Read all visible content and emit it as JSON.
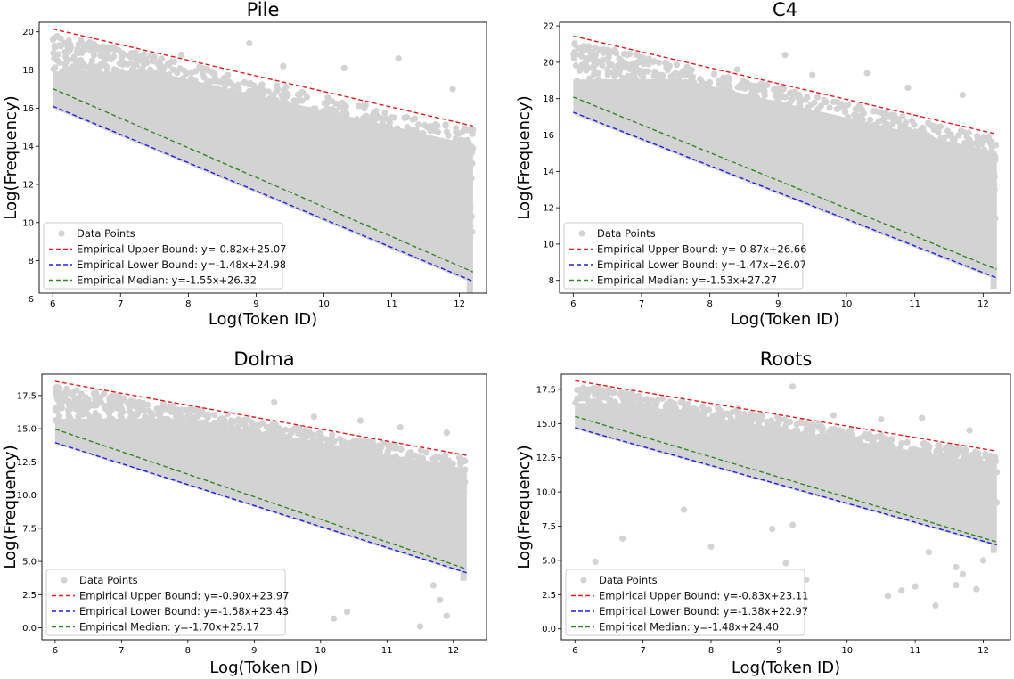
{
  "chart_data": [
    {
      "type": "scatter",
      "title": "Pile",
      "xlabel": "Log(Token ID)",
      "ylabel": "Log(Frequency)",
      "xlim": [
        5.8,
        12.4
      ],
      "ylim": [
        6.3,
        20.5
      ],
      "xticks": [
        6,
        7,
        8,
        9,
        10,
        11,
        12
      ],
      "xtick_labels": [
        "6",
        "7",
        "8",
        "9",
        "10",
        "11",
        "12"
      ],
      "yticks": [
        6,
        8,
        10,
        12,
        14,
        16,
        18,
        20
      ],
      "ytick_labels": [
        "6",
        "8",
        "10",
        "12",
        "14",
        "16",
        "18",
        "20"
      ],
      "x_range": [
        6.0,
        12.2
      ],
      "lines": [
        {
          "name": "Empirical Upper Bound: y=-0.82x+25.07",
          "slope": -0.82,
          "intercept": 25.07,
          "color": "#e41a1c"
        },
        {
          "name": "Empirical Lower Bound: y=-1.48x+24.98",
          "slope": -1.48,
          "intercept": 24.98,
          "color": "#1f1fe0"
        },
        {
          "name": "Empirical Median: y=-1.55x+26.32",
          "slope": -1.55,
          "intercept": 26.32,
          "color": "#2a8a1e"
        }
      ],
      "scatter_name": "Data Points",
      "scatter_color": "#d3d3d3",
      "outliers": [
        [
          6.2,
          18.4
        ],
        [
          6.6,
          18.9
        ],
        [
          6.9,
          18.7
        ],
        [
          7.3,
          18.5
        ],
        [
          7.9,
          18.8
        ],
        [
          8.9,
          19.4
        ],
        [
          9.4,
          18.2
        ],
        [
          10.3,
          18.1
        ],
        [
          11.1,
          18.6
        ],
        [
          11.9,
          17.0
        ],
        [
          6.4,
          18.2
        ],
        [
          7.1,
          18.3
        ]
      ],
      "legend_loc": "lower left"
    },
    {
      "type": "scatter",
      "title": "C4",
      "xlabel": "Log(Token ID)",
      "ylabel": "Log(Frequency)",
      "xlim": [
        5.8,
        12.4
      ],
      "ylim": [
        7.3,
        22.2
      ],
      "xticks": [
        6,
        7,
        8,
        9,
        10,
        11,
        12
      ],
      "xtick_labels": [
        "6",
        "7",
        "8",
        "9",
        "10",
        "11",
        "12"
      ],
      "yticks": [
        8,
        10,
        12,
        14,
        16,
        18,
        20,
        22
      ],
      "ytick_labels": [
        "8",
        "10",
        "12",
        "14",
        "16",
        "18",
        "20",
        "22"
      ],
      "x_range": [
        6.0,
        12.2
      ],
      "lines": [
        {
          "name": "Empirical Upper Bound: y=-0.87x+26.66",
          "slope": -0.87,
          "intercept": 26.66,
          "color": "#e41a1c"
        },
        {
          "name": "Empirical Lower Bound: y=-1.47x+26.07",
          "slope": -1.47,
          "intercept": 26.07,
          "color": "#1f1fe0"
        },
        {
          "name": "Empirical Median: y=-1.53x+27.27",
          "slope": -1.53,
          "intercept": 27.27,
          "color": "#2a8a1e"
        }
      ],
      "scatter_name": "Data Points",
      "scatter_color": "#d3d3d3",
      "outliers": [
        [
          6.3,
          19.8
        ],
        [
          6.7,
          20.1
        ],
        [
          7.1,
          19.9
        ],
        [
          7.6,
          19.5
        ],
        [
          8.4,
          19.6
        ],
        [
          9.1,
          20.4
        ],
        [
          9.5,
          19.3
        ],
        [
          10.3,
          19.4
        ],
        [
          10.9,
          18.6
        ],
        [
          11.7,
          18.2
        ],
        [
          6.5,
          19.6
        ],
        [
          7.3,
          19.2
        ]
      ],
      "legend_loc": "lower left"
    },
    {
      "type": "scatter",
      "title": "Dolma",
      "xlabel": "Log(Token ID)",
      "ylabel": "Log(Frequency)",
      "xlim": [
        5.8,
        12.5
      ],
      "ylim": [
        -0.9,
        19.1
      ],
      "xticks": [
        6,
        7,
        8,
        9,
        10,
        11,
        12
      ],
      "xtick_labels": [
        "6",
        "7",
        "8",
        "9",
        "10",
        "11",
        "12"
      ],
      "yticks": [
        0.0,
        2.5,
        5.0,
        7.5,
        10.0,
        12.5,
        15.0,
        17.5
      ],
      "ytick_labels": [
        "0.0",
        "2.5",
        "5.0",
        "7.5",
        "10.0",
        "12.5",
        "15.0",
        "17.5"
      ],
      "x_range": [
        6.0,
        12.2
      ],
      "lines": [
        {
          "name": "Empirical Upper Bound: y=-0.90x+23.97",
          "slope": -0.9,
          "intercept": 23.97,
          "color": "#e41a1c"
        },
        {
          "name": "Empirical Lower Bound: y=-1.58x+23.43",
          "slope": -1.58,
          "intercept": 23.43,
          "color": "#1f1fe0"
        },
        {
          "name": "Empirical Median: y=-1.70x+25.17",
          "slope": -1.7,
          "intercept": 25.17,
          "color": "#2a8a1e"
        }
      ],
      "scatter_name": "Data Points",
      "scatter_color": "#d3d3d3",
      "outliers": [
        [
          6.4,
          16.5
        ],
        [
          6.9,
          16.9
        ],
        [
          7.2,
          16.7
        ],
        [
          7.8,
          16.3
        ],
        [
          8.6,
          16.1
        ],
        [
          9.3,
          17.0
        ],
        [
          9.9,
          15.9
        ],
        [
          10.6,
          15.6
        ],
        [
          11.2,
          15.1
        ],
        [
          11.9,
          14.7
        ],
        [
          10.2,
          0.7
        ],
        [
          10.4,
          1.2
        ],
        [
          11.5,
          0.1
        ],
        [
          11.8,
          2.1
        ],
        [
          11.9,
          0.9
        ],
        [
          11.7,
          3.2
        ]
      ],
      "legend_loc": "lower left"
    },
    {
      "type": "scatter",
      "title": "Roots",
      "xlabel": "Log(Token ID)",
      "ylabel": "Log(Frequency)",
      "xlim": [
        5.8,
        12.4
      ],
      "ylim": [
        -0.8,
        18.6
      ],
      "xticks": [
        6,
        7,
        8,
        9,
        10,
        11,
        12
      ],
      "xtick_labels": [
        "6",
        "7",
        "8",
        "9",
        "10",
        "11",
        "12"
      ],
      "yticks": [
        0.0,
        2.5,
        5.0,
        7.5,
        10.0,
        12.5,
        15.0,
        17.5
      ],
      "ytick_labels": [
        "0.0",
        "2.5",
        "5.0",
        "7.5",
        "10.0",
        "12.5",
        "15.0",
        "17.5"
      ],
      "x_range": [
        6.0,
        12.2
      ],
      "lines": [
        {
          "name": "Empirical Upper Bound: y=-0.83x+23.11",
          "slope": -0.83,
          "intercept": 23.11,
          "color": "#e41a1c"
        },
        {
          "name": "Empirical Lower Bound: y=-1.38x+22.97",
          "slope": -1.38,
          "intercept": 22.97,
          "color": "#1f1fe0"
        },
        {
          "name": "Empirical Median: y=-1.48x+24.40",
          "slope": -1.48,
          "intercept": 24.4,
          "color": "#2a8a1e"
        }
      ],
      "scatter_name": "Data Points",
      "scatter_color": "#d3d3d3",
      "outliers": [
        [
          6.3,
          16.2
        ],
        [
          6.8,
          16.6
        ],
        [
          7.2,
          16.5
        ],
        [
          7.9,
          16.0
        ],
        [
          8.4,
          16.1
        ],
        [
          9.2,
          17.7
        ],
        [
          9.8,
          15.6
        ],
        [
          10.5,
          15.3
        ],
        [
          11.1,
          15.4
        ],
        [
          11.8,
          14.5
        ],
        [
          6.3,
          4.9
        ],
        [
          6.7,
          6.6
        ],
        [
          7.6,
          8.7
        ],
        [
          8.0,
          6.0
        ],
        [
          8.9,
          7.3
        ],
        [
          9.1,
          4.8
        ],
        [
          9.2,
          7.6
        ],
        [
          9.4,
          3.6
        ],
        [
          10.6,
          2.4
        ],
        [
          10.8,
          2.8
        ],
        [
          11.0,
          3.1
        ],
        [
          11.3,
          1.7
        ],
        [
          11.6,
          3.2
        ],
        [
          11.7,
          4.0
        ],
        [
          11.9,
          2.9
        ],
        [
          11.2,
          5.6
        ],
        [
          12.0,
          5.0
        ],
        [
          11.6,
          4.5
        ]
      ],
      "legend_loc": "lower left"
    }
  ]
}
